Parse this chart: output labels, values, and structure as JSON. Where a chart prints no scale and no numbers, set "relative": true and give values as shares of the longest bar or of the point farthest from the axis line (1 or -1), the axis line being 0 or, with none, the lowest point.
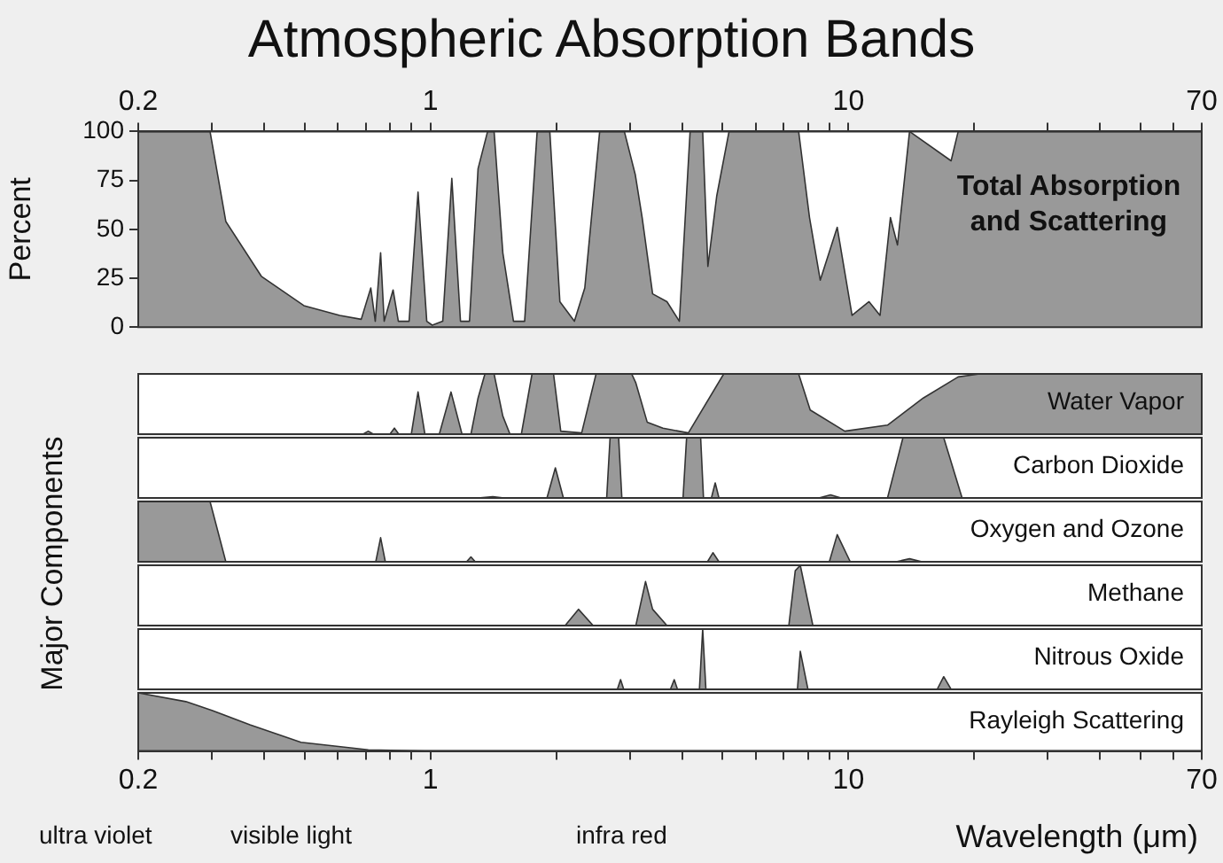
{
  "chart_data": [
    {
      "type": "area",
      "title": "Atmospheric Absorption Bands",
      "ylabel": "Percent",
      "log": "x",
      "color": "#999999",
      "xlim": [
        0.2,
        70
      ],
      "ylim": [
        0,
        100
      ],
      "yticks": [
        0,
        25,
        50,
        75,
        100
      ],
      "xticks": [
        0.2,
        {
          "value": 0.3,
          "label": null
        },
        {
          "value": 0.4,
          "label": null
        },
        {
          "value": 0.5,
          "label": null
        },
        {
          "value": 0.6,
          "label": null
        },
        {
          "value": 0.7,
          "label": null
        },
        {
          "value": 0.8,
          "label": null
        },
        {
          "value": 0.9,
          "label": null
        },
        1,
        {
          "value": 2,
          "label": null
        },
        {
          "value": 3,
          "label": null
        },
        {
          "value": 4,
          "label": null
        },
        {
          "value": 5,
          "label": null
        },
        {
          "value": 6,
          "label": null
        },
        {
          "value": 7,
          "label": null
        },
        {
          "value": 8,
          "label": null
        },
        {
          "value": 9,
          "label": null
        },
        10,
        {
          "value": 20,
          "label": null
        },
        {
          "value": 30,
          "label": null
        },
        {
          "value": 40,
          "label": null
        },
        {
          "value": 50,
          "label": null
        },
        {
          "value": 60,
          "label": null
        },
        70
      ],
      "annotations": [
        "Total Absorption and Scattering"
      ],
      "x": [
        0.2,
        0.297,
        0.324,
        0.394,
        0.498,
        0.607,
        0.683,
        0.72,
        0.738,
        0.76,
        0.775,
        0.814,
        0.838,
        0.889,
        0.934,
        0.98,
        1.01,
        1.07,
        1.125,
        1.18,
        1.24,
        1.3,
        1.37,
        1.42,
        1.49,
        1.58,
        1.68,
        1.8,
        1.93,
        2.04,
        2.21,
        2.34,
        2.54,
        2.91,
        3.09,
        3.21,
        3.4,
        3.68,
        3.94,
        4.18,
        4.48,
        4.61,
        4.84,
        5.18,
        7.6,
        8.07,
        8.56,
        9.4,
        10.2,
        11.2,
        11.9,
        12.6,
        13.1,
        14,
        17.6,
        18.3,
        70
      ],
      "values": [
        100,
        100,
        54,
        26,
        11,
        6,
        4,
        20,
        3,
        38,
        3,
        19,
        3,
        3,
        69,
        3,
        1,
        3,
        76,
        3,
        3,
        81,
        100,
        100,
        38,
        3,
        3,
        100,
        100,
        13,
        3,
        20,
        100,
        100,
        78,
        56,
        17,
        13,
        3,
        100,
        100,
        31,
        67,
        100,
        100,
        56,
        24,
        51,
        6,
        13,
        6,
        56,
        42,
        100,
        85,
        100,
        100
      ]
    },
    {
      "type": "area",
      "relative": true,
      "ylabel": "Major Components",
      "log": "x",
      "color": "#999999",
      "xlim": [
        0.2,
        70
      ],
      "tick_labels": false,
      "annotations": [
        "Water Vapor"
      ],
      "x": [
        0.2,
        0.69,
        0.71,
        0.73,
        0.8,
        0.82,
        0.84,
        0.9,
        0.934,
        0.97,
        1.05,
        1.12,
        1.19,
        1.25,
        1.3,
        1.35,
        1.42,
        1.49,
        1.55,
        1.65,
        1.75,
        1.97,
        2.05,
        2.3,
        2.49,
        3.03,
        3.1,
        3.3,
        3.6,
        4.14,
        5.03,
        7.6,
        8.1,
        9.8,
        12.4,
        15.1,
        18.3,
        20.6,
        70
      ],
      "values": [
        0,
        0,
        0.05,
        0,
        0,
        0.1,
        0,
        0,
        0.7,
        0,
        0,
        0.7,
        0,
        0,
        0.6,
        1,
        1,
        0.3,
        0,
        0,
        1,
        1,
        0.05,
        0.02,
        1,
        1,
        0.85,
        0.2,
        0.1,
        0.02,
        1,
        1,
        0.4,
        0.05,
        0.15,
        0.6,
        0.95,
        1,
        1
      ]
    },
    {
      "type": "area",
      "relative": true,
      "log": "x",
      "color": "#999999",
      "xlim": [
        0.2,
        70
      ],
      "tick_labels": false,
      "annotations": [
        "Carbon Dioxide"
      ],
      "x": [
        0.2,
        1.3,
        1.41,
        1.5,
        1.9,
        1.99,
        2.08,
        2.6,
        2.64,
        2.69,
        2.82,
        2.87,
        4.0,
        4.02,
        4.1,
        4.43,
        4.5,
        4.7,
        4.8,
        4.9,
        8.5,
        9.06,
        9.6,
        12.4,
        13.5,
        16.9,
        18.7,
        70
      ],
      "values": [
        0,
        0,
        0.02,
        0,
        0,
        0.5,
        0,
        0,
        0,
        1,
        1,
        0,
        0,
        0,
        1,
        1,
        0,
        0,
        0.25,
        0,
        0,
        0.05,
        0,
        0,
        1,
        1,
        0,
        0
      ]
    },
    {
      "type": "area",
      "relative": true,
      "log": "x",
      "color": "#999999",
      "xlim": [
        0.2,
        70
      ],
      "tick_labels": false,
      "annotations": [
        "Oxygen and Ozone"
      ],
      "x": [
        0.2,
        0.297,
        0.324,
        0.74,
        0.76,
        0.78,
        1.22,
        1.25,
        1.28,
        4.6,
        4.74,
        4.9,
        9.0,
        9.4,
        10.1,
        13,
        14,
        15,
        70
      ],
      "values": [
        1,
        1,
        0,
        0,
        0.4,
        0,
        0,
        0.08,
        0,
        0,
        0.15,
        0,
        0,
        0.45,
        0,
        0,
        0.05,
        0,
        0
      ]
    },
    {
      "type": "area",
      "relative": true,
      "log": "x",
      "color": "#999999",
      "xlim": [
        0.2,
        70
      ],
      "tick_labels": false,
      "annotations": [
        "Methane"
      ],
      "x": [
        0.2,
        2.1,
        2.26,
        2.45,
        3.1,
        3.27,
        3.4,
        3.68,
        7.2,
        7.46,
        7.67,
        8.22,
        70
      ],
      "values": [
        0,
        0,
        0.27,
        0,
        0,
        0.73,
        0.27,
        0,
        0,
        0.91,
        1,
        0,
        0
      ]
    },
    {
      "type": "area",
      "relative": true,
      "log": "x",
      "color": "#999999",
      "xlim": [
        0.2,
        70
      ],
      "tick_labels": false,
      "annotations": [
        "Nitrous Oxide"
      ],
      "x": [
        0.2,
        2.8,
        2.85,
        2.9,
        3.75,
        3.83,
        3.9,
        4.4,
        4.48,
        4.56,
        7.55,
        7.67,
        8.0,
        16.3,
        16.9,
        17.6,
        70
      ],
      "values": [
        0,
        0,
        0.16,
        0,
        0,
        0.16,
        0,
        0,
        1,
        0,
        0,
        0.63,
        0,
        0,
        0.21,
        0,
        0
      ]
    },
    {
      "type": "area",
      "relative": true,
      "log": "x",
      "color": "#999999",
      "xlim": [
        0.2,
        70
      ],
      "tick_labels": "x",
      "xlabel": "Wavelength (μm)",
      "annotations": [
        "Rayleigh Scattering",
        "ultra violet",
        "visible light",
        "infra red"
      ],
      "xticks": [
        0.2,
        {
          "value": 0.3,
          "label": null
        },
        {
          "value": 0.4,
          "label": null
        },
        {
          "value": 0.5,
          "label": null
        },
        {
          "value": 0.6,
          "label": null
        },
        {
          "value": 0.7,
          "label": null
        },
        {
          "value": 0.8,
          "label": null
        },
        {
          "value": 0.9,
          "label": null
        },
        1,
        {
          "value": 2,
          "label": null
        },
        {
          "value": 3,
          "label": null
        },
        {
          "value": 4,
          "label": null
        },
        {
          "value": 5,
          "label": null
        },
        {
          "value": 6,
          "label": null
        },
        {
          "value": 7,
          "label": null
        },
        {
          "value": 8,
          "label": null
        },
        {
          "value": 9,
          "label": null
        },
        10,
        {
          "value": 20,
          "label": null
        },
        {
          "value": 30,
          "label": null
        },
        {
          "value": 40,
          "label": null
        },
        {
          "value": 50,
          "label": null
        },
        {
          "value": 60,
          "label": null
        },
        70
      ],
      "x": [
        0.2,
        0.26,
        0.3,
        0.37,
        0.49,
        0.71,
        0.97,
        70
      ],
      "values": [
        1,
        0.85,
        0.7,
        0.45,
        0.15,
        0.02,
        0,
        0
      ]
    }
  ]
}
